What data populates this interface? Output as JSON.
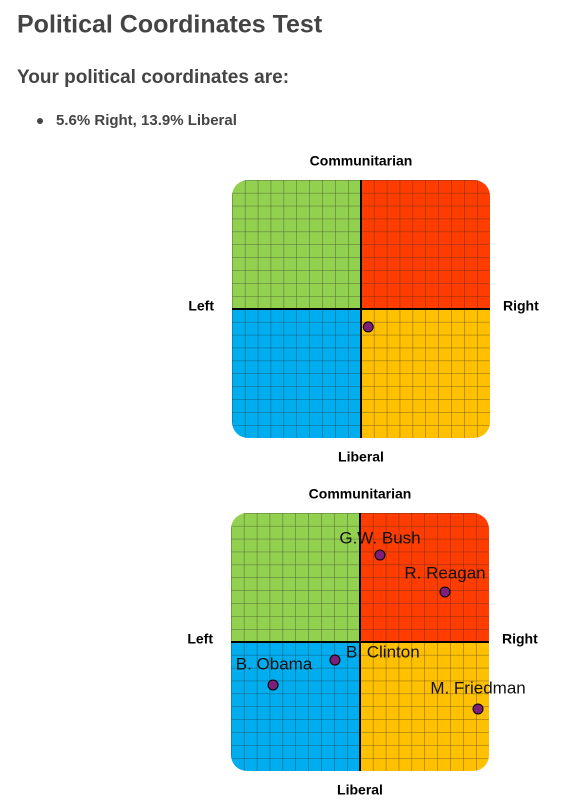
{
  "title": "Political Coordinates Test",
  "subtitle": "Your political coordinates are:",
  "result": "5.6% Right, 13.9% Liberal",
  "chart_data": [
    {
      "type": "scatter",
      "top_label": "Communitarian",
      "bottom_label": "Liberal",
      "left_label": "Left",
      "right_label": "Right",
      "xlim": [
        -100,
        100
      ],
      "ylim": [
        -100,
        100
      ],
      "quadrant_colors": [
        "#92d050",
        "#ff3d00",
        "#00aeef",
        "#ffc000"
      ],
      "color": "#7b1f7b",
      "x": [
        5.6
      ],
      "y": [
        -13.9
      ]
    },
    {
      "type": "scatter",
      "top_label": "Communitarian",
      "bottom_label": "Liberal",
      "left_label": "Left",
      "right_label": "Right",
      "xlim": [
        -100,
        100
      ],
      "ylim": [
        -100,
        100
      ],
      "quadrant_colors": [
        "#92d050",
        "#ff3d00",
        "#00aeef",
        "#ffc000"
      ],
      "color": "#7b1f7b",
      "labels": [
        "G.W. Bush",
        "R. Reagan",
        "B. Clinton",
        "B. Obama",
        "M. Friedman"
      ],
      "x": [
        15.5,
        65.9,
        -19.4,
        -67.4,
        91.5
      ],
      "y": [
        67.4,
        38.8,
        -14.0,
        -33.3,
        -51.9
      ]
    }
  ]
}
